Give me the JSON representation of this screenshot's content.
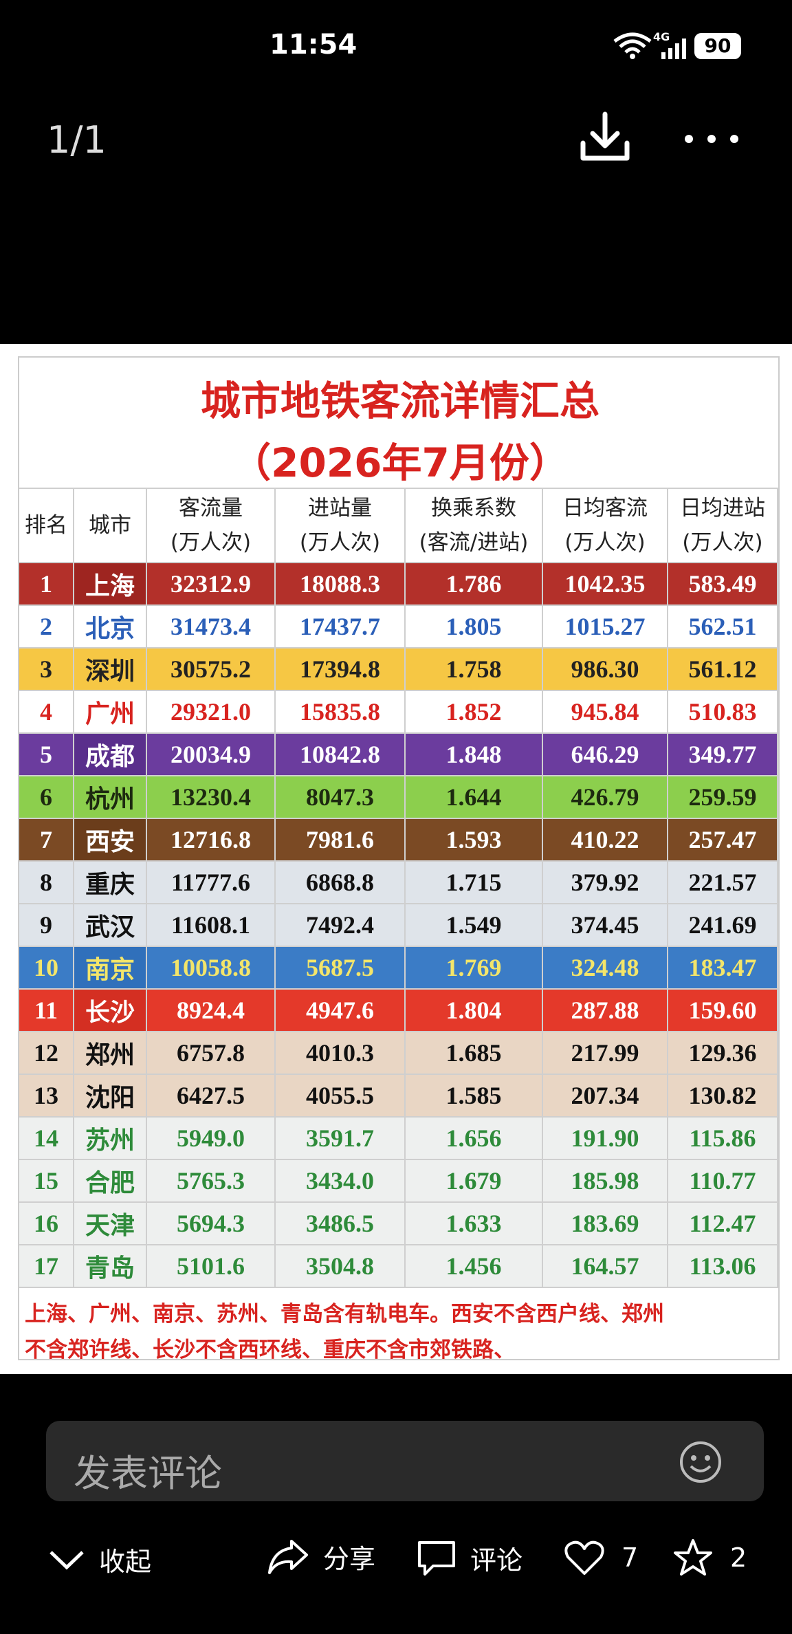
{
  "status": {
    "time": "11:54",
    "battery": "90",
    "network": "4G"
  },
  "viewer": {
    "counter": "1/1"
  },
  "table": {
    "title": "城市地铁客流详情汇总",
    "subtitle": "（2026年7月份）",
    "headers": [
      [
        "排名"
      ],
      [
        "城市"
      ],
      [
        "客流量",
        "(万人次)"
      ],
      [
        "进站量",
        "(万人次)"
      ],
      [
        "换乘系数",
        "(客流/进站)"
      ],
      [
        "日均客流",
        "(万人次)"
      ],
      [
        "日均进站",
        "(万人次)"
      ]
    ],
    "rows": [
      [
        "1",
        "上海",
        "32312.9",
        "18088.3",
        "1.786",
        "1042.35",
        "583.49"
      ],
      [
        "2",
        "北京",
        "31473.4",
        "17437.7",
        "1.805",
        "1015.27",
        "562.51"
      ],
      [
        "3",
        "深圳",
        "30575.2",
        "17394.8",
        "1.758",
        "986.30",
        "561.12"
      ],
      [
        "4",
        "广州",
        "29321.0",
        "15835.8",
        "1.852",
        "945.84",
        "510.83"
      ],
      [
        "5",
        "成都",
        "20034.9",
        "10842.8",
        "1.848",
        "646.29",
        "349.77"
      ],
      [
        "6",
        "杭州",
        "13230.4",
        "8047.3",
        "1.644",
        "426.79",
        "259.59"
      ],
      [
        "7",
        "西安",
        "12716.8",
        "7981.6",
        "1.593",
        "410.22",
        "257.47"
      ],
      [
        "8",
        "重庆",
        "11777.6",
        "6868.8",
        "1.715",
        "379.92",
        "221.57"
      ],
      [
        "9",
        "武汉",
        "11608.1",
        "7492.4",
        "1.549",
        "374.45",
        "241.69"
      ],
      [
        "10",
        "南京",
        "10058.8",
        "5687.5",
        "1.769",
        "324.48",
        "183.47"
      ],
      [
        "11",
        "长沙",
        "8924.4",
        "4947.6",
        "1.804",
        "287.88",
        "159.60"
      ],
      [
        "12",
        "郑州",
        "6757.8",
        "4010.3",
        "1.685",
        "217.99",
        "129.36"
      ],
      [
        "13",
        "沈阳",
        "6427.5",
        "4055.5",
        "1.585",
        "207.34",
        "130.82"
      ],
      [
        "14",
        "苏州",
        "5949.0",
        "3591.7",
        "1.656",
        "191.90",
        "115.86"
      ],
      [
        "15",
        "合肥",
        "5765.3",
        "3434.0",
        "1.679",
        "185.98",
        "110.77"
      ],
      [
        "16",
        "天津",
        "5694.3",
        "3486.5",
        "1.633",
        "183.69",
        "112.47"
      ],
      [
        "17",
        "青岛",
        "5101.6",
        "3504.8",
        "1.456",
        "164.57",
        "113.06"
      ]
    ],
    "notes": [
      "上海、广州、南京、苏州、青岛含有轨电车。西安不含西户线、郑州",
      "不含郑许线、长沙不含西环线、重庆不含市郊铁路、"
    ]
  },
  "comment": {
    "placeholder": "发表评论"
  },
  "actions": {
    "collapse": "收起",
    "share": "分享",
    "comment": "评论",
    "likes": "7",
    "favorites": "2"
  }
}
